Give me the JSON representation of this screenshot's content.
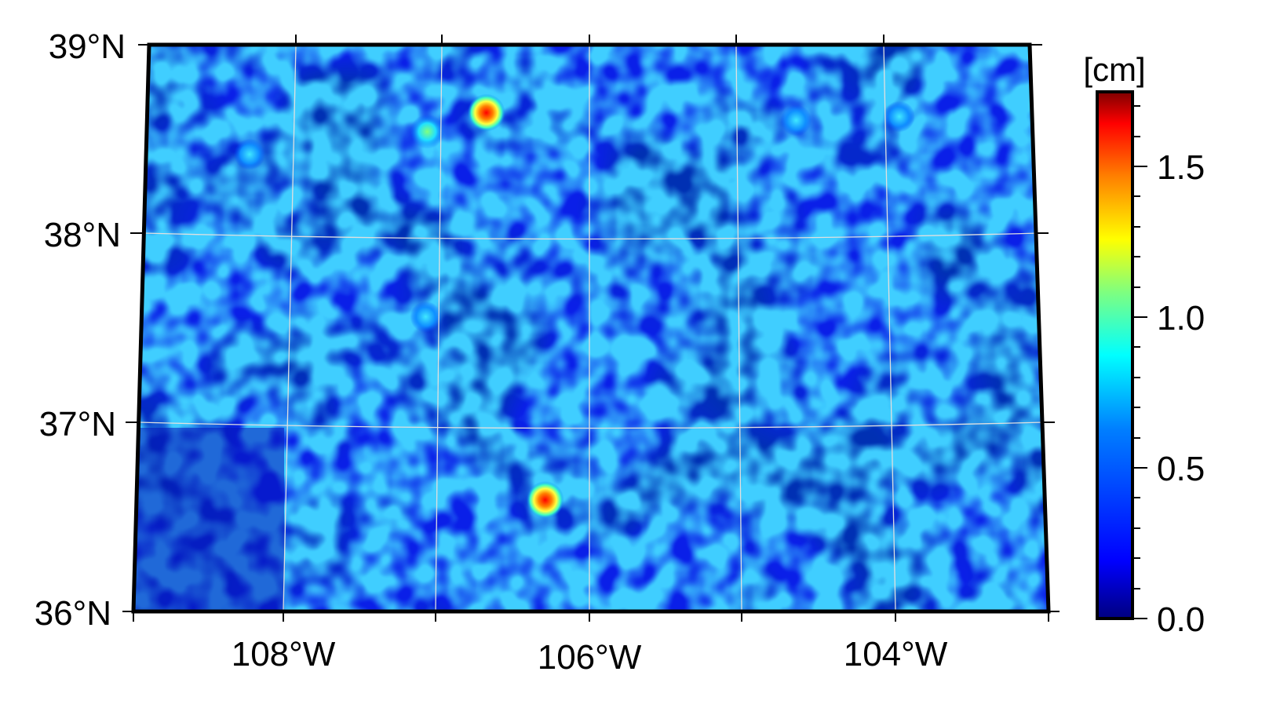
{
  "map": {
    "lat_labels": [
      "39°N",
      "38°N",
      "37°N",
      "36°N"
    ],
    "lon_labels": [
      "108°W",
      "106°W",
      "104°W"
    ],
    "lat_range": [
      36,
      39
    ],
    "lon_range": [
      -109,
      -103
    ],
    "grid_lines": true,
    "grid_color": "#e0e0e0",
    "frame_color": "#000000",
    "background_color": "#0a1fe8",
    "hotspots": [
      {
        "lon": -106.7,
        "lat": 38.64,
        "value": 1.5
      },
      {
        "lon": -106.3,
        "lat": 36.59,
        "value": 1.6
      },
      {
        "lon": -107.1,
        "lat": 38.54,
        "value": 0.8
      },
      {
        "lon": -107.1,
        "lat": 37.56,
        "value": 0.6
      },
      {
        "lon": -108.3,
        "lat": 38.42,
        "value": 0.6
      },
      {
        "lon": -104.6,
        "lat": 38.6,
        "value": 0.5
      },
      {
        "lon": -103.9,
        "lat": 38.62,
        "value": 0.5
      }
    ]
  },
  "colorbar": {
    "unit_label": "[cm]",
    "tick_labels": [
      "1.5",
      "1.0",
      "0.5",
      "0.0"
    ],
    "range": [
      0.0,
      1.75
    ],
    "colormap": "jet",
    "colors": [
      "#00007f",
      "#0000ff",
      "#007fff",
      "#00ffff",
      "#7fff7f",
      "#ffff00",
      "#ff7f00",
      "#ff0000",
      "#7f0000"
    ]
  }
}
